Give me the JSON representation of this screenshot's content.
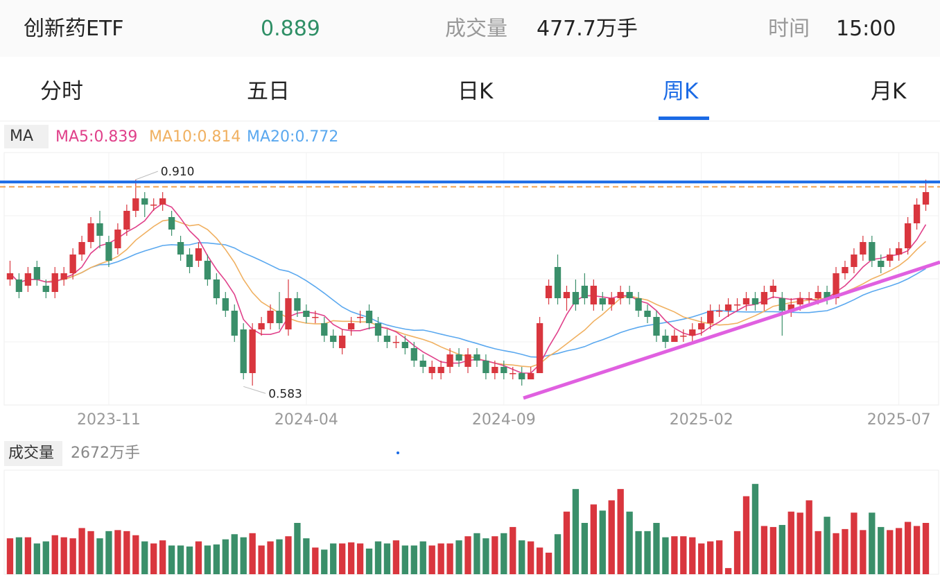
{
  "header": {
    "name": "创新药ETF",
    "price": "0.889",
    "volume_label": "成交量",
    "volume_value": "477.7万手",
    "time_label": "时间",
    "time_value": "15:00"
  },
  "tabs": [
    {
      "label": "分时",
      "active": false
    },
    {
      "label": "五日",
      "active": false
    },
    {
      "label": "日K",
      "active": false
    },
    {
      "label": "周K",
      "active": true
    },
    {
      "label": "月K",
      "active": false
    }
  ],
  "ma": {
    "badge": "MA",
    "ma5": "MA5:0.839",
    "ma10": "MA10:0.814",
    "ma20": "MA20:0.772"
  },
  "colors": {
    "up": "#d9363e",
    "down": "#3a8f6a",
    "accent": "#1a6ae5",
    "ma5": "#e0408a",
    "ma10": "#f0b060",
    "ma20": "#5aa8ef",
    "trendline": "#e060e0",
    "dashed_level": "#f0a050"
  },
  "chart_data": {
    "type": "candlestick",
    "x_ticks": [
      "2023-11",
      "2024-04",
      "2024-09",
      "2025-02",
      "2025-07"
    ],
    "annotations": {
      "high": "0.910",
      "low": "0.583"
    },
    "resistance_level": 0.889,
    "price_range": [
      0.56,
      0.94
    ],
    "trendline": [
      [
        0.56,
        0.56
      ],
      [
        0.83,
        0.78
      ]
    ],
    "candles": [
      [
        0.75,
        0.76,
        0.78,
        0.74
      ],
      [
        0.75,
        0.73,
        0.76,
        0.72
      ],
      [
        0.74,
        0.76,
        0.77,
        0.73
      ],
      [
        0.77,
        0.75,
        0.78,
        0.74
      ],
      [
        0.74,
        0.73,
        0.75,
        0.72
      ],
      [
        0.73,
        0.76,
        0.77,
        0.72
      ],
      [
        0.75,
        0.76,
        0.77,
        0.74
      ],
      [
        0.76,
        0.79,
        0.8,
        0.75
      ],
      [
        0.79,
        0.81,
        0.82,
        0.78
      ],
      [
        0.81,
        0.84,
        0.85,
        0.8
      ],
      [
        0.84,
        0.82,
        0.86,
        0.8
      ],
      [
        0.81,
        0.78,
        0.82,
        0.77
      ],
      [
        0.8,
        0.83,
        0.84,
        0.79
      ],
      [
        0.83,
        0.86,
        0.87,
        0.82
      ],
      [
        0.86,
        0.88,
        0.91,
        0.85
      ],
      [
        0.88,
        0.87,
        0.89,
        0.85
      ],
      [
        0.87,
        0.87,
        0.88,
        0.86
      ],
      [
        0.87,
        0.88,
        0.89,
        0.86
      ],
      [
        0.85,
        0.83,
        0.86,
        0.82
      ],
      [
        0.81,
        0.79,
        0.82,
        0.78
      ],
      [
        0.79,
        0.77,
        0.8,
        0.76
      ],
      [
        0.78,
        0.8,
        0.81,
        0.77
      ],
      [
        0.78,
        0.75,
        0.79,
        0.74
      ],
      [
        0.75,
        0.72,
        0.76,
        0.71
      ],
      [
        0.72,
        0.7,
        0.73,
        0.69
      ],
      [
        0.7,
        0.66,
        0.71,
        0.65
      ],
      [
        0.67,
        0.6,
        0.68,
        0.59
      ],
      [
        0.6,
        0.67,
        0.68,
        0.58
      ],
      [
        0.67,
        0.68,
        0.69,
        0.66
      ],
      [
        0.68,
        0.7,
        0.71,
        0.67
      ],
      [
        0.7,
        0.68,
        0.73,
        0.67
      ],
      [
        0.67,
        0.72,
        0.75,
        0.66
      ],
      [
        0.72,
        0.7,
        0.73,
        0.69
      ],
      [
        0.7,
        0.69,
        0.71,
        0.68
      ],
      [
        0.69,
        0.69,
        0.7,
        0.68
      ],
      [
        0.68,
        0.66,
        0.69,
        0.65
      ],
      [
        0.66,
        0.65,
        0.67,
        0.64
      ],
      [
        0.64,
        0.66,
        0.67,
        0.63
      ],
      [
        0.67,
        0.68,
        0.69,
        0.66
      ],
      [
        0.69,
        0.69,
        0.7,
        0.68
      ],
      [
        0.7,
        0.68,
        0.71,
        0.67
      ],
      [
        0.68,
        0.66,
        0.69,
        0.65
      ],
      [
        0.66,
        0.65,
        0.67,
        0.64
      ],
      [
        0.65,
        0.65,
        0.66,
        0.64
      ],
      [
        0.65,
        0.64,
        0.66,
        0.63
      ],
      [
        0.64,
        0.62,
        0.65,
        0.61
      ],
      [
        0.62,
        0.61,
        0.63,
        0.6
      ],
      [
        0.6,
        0.61,
        0.62,
        0.59
      ],
      [
        0.6,
        0.61,
        0.62,
        0.59
      ],
      [
        0.61,
        0.63,
        0.64,
        0.6
      ],
      [
        0.63,
        0.62,
        0.64,
        0.61
      ],
      [
        0.61,
        0.63,
        0.64,
        0.6
      ],
      [
        0.63,
        0.62,
        0.64,
        0.61
      ],
      [
        0.62,
        0.6,
        0.63,
        0.59
      ],
      [
        0.6,
        0.61,
        0.62,
        0.59
      ],
      [
        0.61,
        0.6,
        0.62,
        0.59
      ],
      [
        0.6,
        0.6,
        0.61,
        0.59
      ],
      [
        0.6,
        0.59,
        0.61,
        0.58
      ],
      [
        0.59,
        0.6,
        0.61,
        0.59
      ],
      [
        0.6,
        0.68,
        0.69,
        0.6
      ],
      [
        0.72,
        0.74,
        0.75,
        0.71
      ],
      [
        0.77,
        0.72,
        0.79,
        0.71
      ],
      [
        0.72,
        0.73,
        0.74,
        0.7
      ],
      [
        0.73,
        0.71,
        0.75,
        0.7
      ],
      [
        0.74,
        0.72,
        0.76,
        0.71
      ],
      [
        0.71,
        0.74,
        0.75,
        0.7
      ],
      [
        0.72,
        0.71,
        0.73,
        0.7
      ],
      [
        0.71,
        0.72,
        0.73,
        0.7
      ],
      [
        0.72,
        0.73,
        0.74,
        0.71
      ],
      [
        0.73,
        0.72,
        0.74,
        0.71
      ],
      [
        0.72,
        0.7,
        0.73,
        0.69
      ],
      [
        0.7,
        0.69,
        0.71,
        0.68
      ],
      [
        0.69,
        0.66,
        0.7,
        0.65
      ],
      [
        0.66,
        0.65,
        0.67,
        0.64
      ],
      [
        0.65,
        0.66,
        0.67,
        0.65
      ],
      [
        0.66,
        0.66,
        0.67,
        0.65
      ],
      [
        0.66,
        0.67,
        0.68,
        0.65
      ],
      [
        0.67,
        0.68,
        0.69,
        0.66
      ],
      [
        0.68,
        0.7,
        0.71,
        0.67
      ],
      [
        0.7,
        0.7,
        0.71,
        0.69
      ],
      [
        0.7,
        0.71,
        0.72,
        0.69
      ],
      [
        0.71,
        0.71,
        0.72,
        0.7
      ],
      [
        0.71,
        0.72,
        0.73,
        0.7
      ],
      [
        0.72,
        0.71,
        0.73,
        0.7
      ],
      [
        0.71,
        0.73,
        0.74,
        0.7
      ],
      [
        0.73,
        0.74,
        0.75,
        0.72
      ],
      [
        0.72,
        0.7,
        0.73,
        0.66
      ],
      [
        0.7,
        0.71,
        0.72,
        0.69
      ],
      [
        0.71,
        0.72,
        0.73,
        0.7
      ],
      [
        0.72,
        0.72,
        0.73,
        0.71
      ],
      [
        0.72,
        0.73,
        0.74,
        0.71
      ],
      [
        0.73,
        0.72,
        0.74,
        0.71
      ],
      [
        0.72,
        0.76,
        0.77,
        0.71
      ],
      [
        0.76,
        0.77,
        0.78,
        0.75
      ],
      [
        0.77,
        0.79,
        0.8,
        0.76
      ],
      [
        0.79,
        0.81,
        0.82,
        0.78
      ],
      [
        0.81,
        0.78,
        0.82,
        0.77
      ],
      [
        0.78,
        0.77,
        0.79,
        0.76
      ],
      [
        0.78,
        0.79,
        0.8,
        0.77
      ],
      [
        0.79,
        0.8,
        0.81,
        0.78
      ],
      [
        0.8,
        0.84,
        0.85,
        0.79
      ],
      [
        0.84,
        0.87,
        0.88,
        0.83
      ],
      [
        0.87,
        0.89,
        0.91,
        0.86
      ]
    ],
    "volume_label": "成交量",
    "volume_value": "2672万手",
    "volumes": [
      0.35,
      0.36,
      0.36,
      0.3,
      0.32,
      0.38,
      0.36,
      0.35,
      0.45,
      0.42,
      0.35,
      0.42,
      0.43,
      0.42,
      0.38,
      0.32,
      0.3,
      0.33,
      0.28,
      0.28,
      0.27,
      0.32,
      0.28,
      0.29,
      0.34,
      0.39,
      0.36,
      0.4,
      0.28,
      0.32,
      0.34,
      0.37,
      0.5,
      0.35,
      0.26,
      0.24,
      0.3,
      0.3,
      0.31,
      0.3,
      0.25,
      0.32,
      0.3,
      0.33,
      0.28,
      0.28,
      0.32,
      0.28,
      0.3,
      0.3,
      0.33,
      0.37,
      0.4,
      0.35,
      0.37,
      0.4,
      0.46,
      0.33,
      0.32,
      0.26,
      0.21,
      0.39,
      0.61,
      0.83,
      0.5,
      0.68,
      0.62,
      0.72,
      0.83,
      0.61,
      0.42,
      0.42,
      0.5,
      0.36,
      0.37,
      0.37,
      0.36,
      0.3,
      0.32,
      0.33,
      0.06,
      0.42,
      0.76,
      0.88,
      0.47,
      0.46,
      0.48,
      0.61,
      0.6,
      0.72,
      0.42,
      0.56,
      0.4,
      0.44,
      0.6,
      0.43,
      0.6,
      0.46,
      0.43,
      0.45,
      0.51,
      0.47,
      0.5
    ]
  }
}
